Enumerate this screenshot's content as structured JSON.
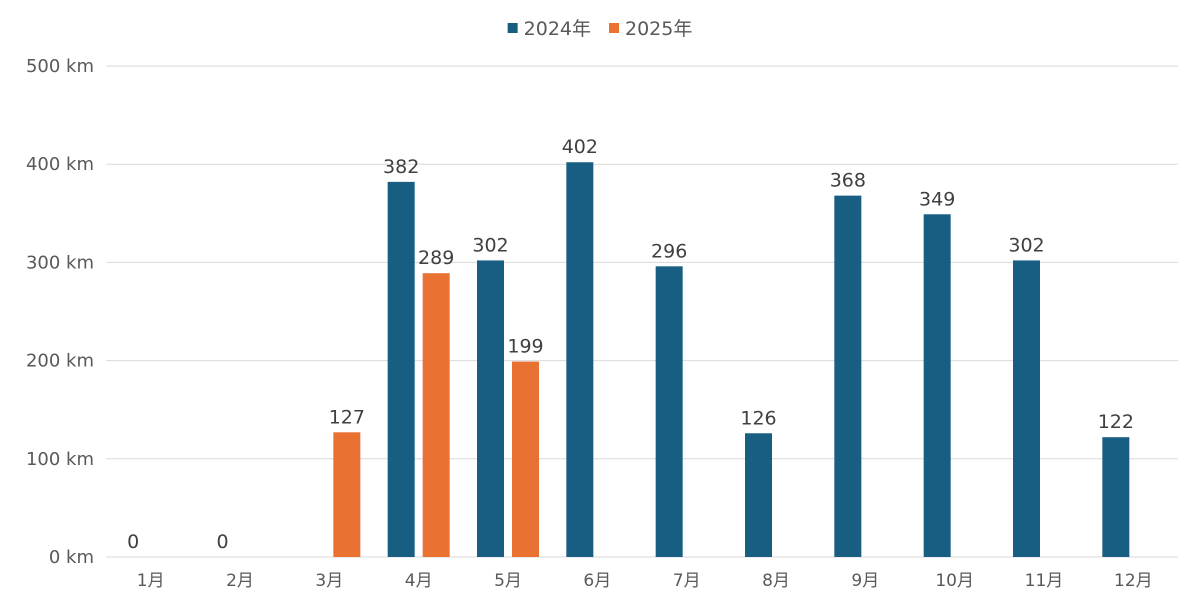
{
  "chart_data": {
    "type": "bar",
    "categories": [
      "1月",
      "2月",
      "3月",
      "4月",
      "5月",
      "6月",
      "7月",
      "8月",
      "9月",
      "10月",
      "11月",
      "12月"
    ],
    "series": [
      {
        "name": "2024年",
        "color": "#175e82",
        "values": [
          0,
          0,
          null,
          382,
          302,
          402,
          296,
          126,
          368,
          349,
          302,
          122
        ]
      },
      {
        "name": "2025年",
        "color": "#e97132",
        "values": [
          null,
          null,
          127,
          289,
          199,
          null,
          null,
          null,
          null,
          null,
          null,
          null
        ]
      }
    ],
    "y_ticks": [
      "0 km",
      "100 km",
      "200 km",
      "300 km",
      "400 km",
      "500 km"
    ],
    "ylim": [
      0,
      500
    ],
    "grid": true,
    "legend_position": "top-center",
    "title": "",
    "xlabel": "",
    "ylabel": ""
  }
}
